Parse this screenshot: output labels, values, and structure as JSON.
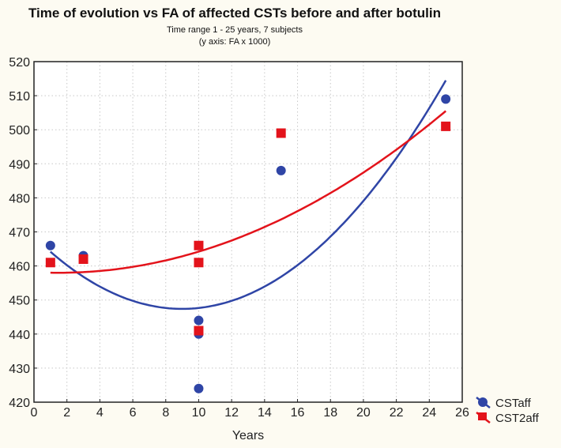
{
  "chart_data": {
    "type": "scatter",
    "title": "Time of evolution vs FA of affected CSTs before and after botulin",
    "subtitle_lines": [
      "Time range 1 - 25 years, 7 subjects",
      "(y axis: FA x 1000)"
    ],
    "xlabel": "Years",
    "ylabel": "",
    "xlim": [
      0,
      26
    ],
    "ylim": [
      420,
      520
    ],
    "xticks": [
      0,
      2,
      4,
      6,
      8,
      10,
      12,
      14,
      16,
      18,
      20,
      22,
      24,
      26
    ],
    "yticks": [
      420,
      430,
      440,
      450,
      460,
      470,
      480,
      490,
      500,
      510,
      520
    ],
    "grid": true,
    "legend_position": "bottom-right-outside",
    "series": [
      {
        "name": "CSTaff",
        "color": "#2f45a6",
        "marker": "circle",
        "points": [
          [
            1,
            466
          ],
          [
            3,
            463
          ],
          [
            10,
            444
          ],
          [
            10,
            440
          ],
          [
            10,
            424
          ],
          [
            15,
            488
          ],
          [
            25,
            509
          ]
        ],
        "fit": {
          "type": "quadratic",
          "vertex_x": 9,
          "vertex_y": 447.4,
          "a": 0.262,
          "x_range": [
            1,
            25
          ]
        }
      },
      {
        "name": "CST2aff",
        "color": "#e3131b",
        "marker": "square",
        "points": [
          [
            1,
            461
          ],
          [
            3,
            462
          ],
          [
            10,
            466
          ],
          [
            10,
            461
          ],
          [
            10,
            441
          ],
          [
            15,
            499
          ],
          [
            25,
            501
          ]
        ],
        "fit": {
          "type": "quadratic",
          "vertex_x": 1.5,
          "vertex_y": 458,
          "a": 0.086,
          "x_range": [
            1,
            25
          ]
        }
      }
    ]
  }
}
